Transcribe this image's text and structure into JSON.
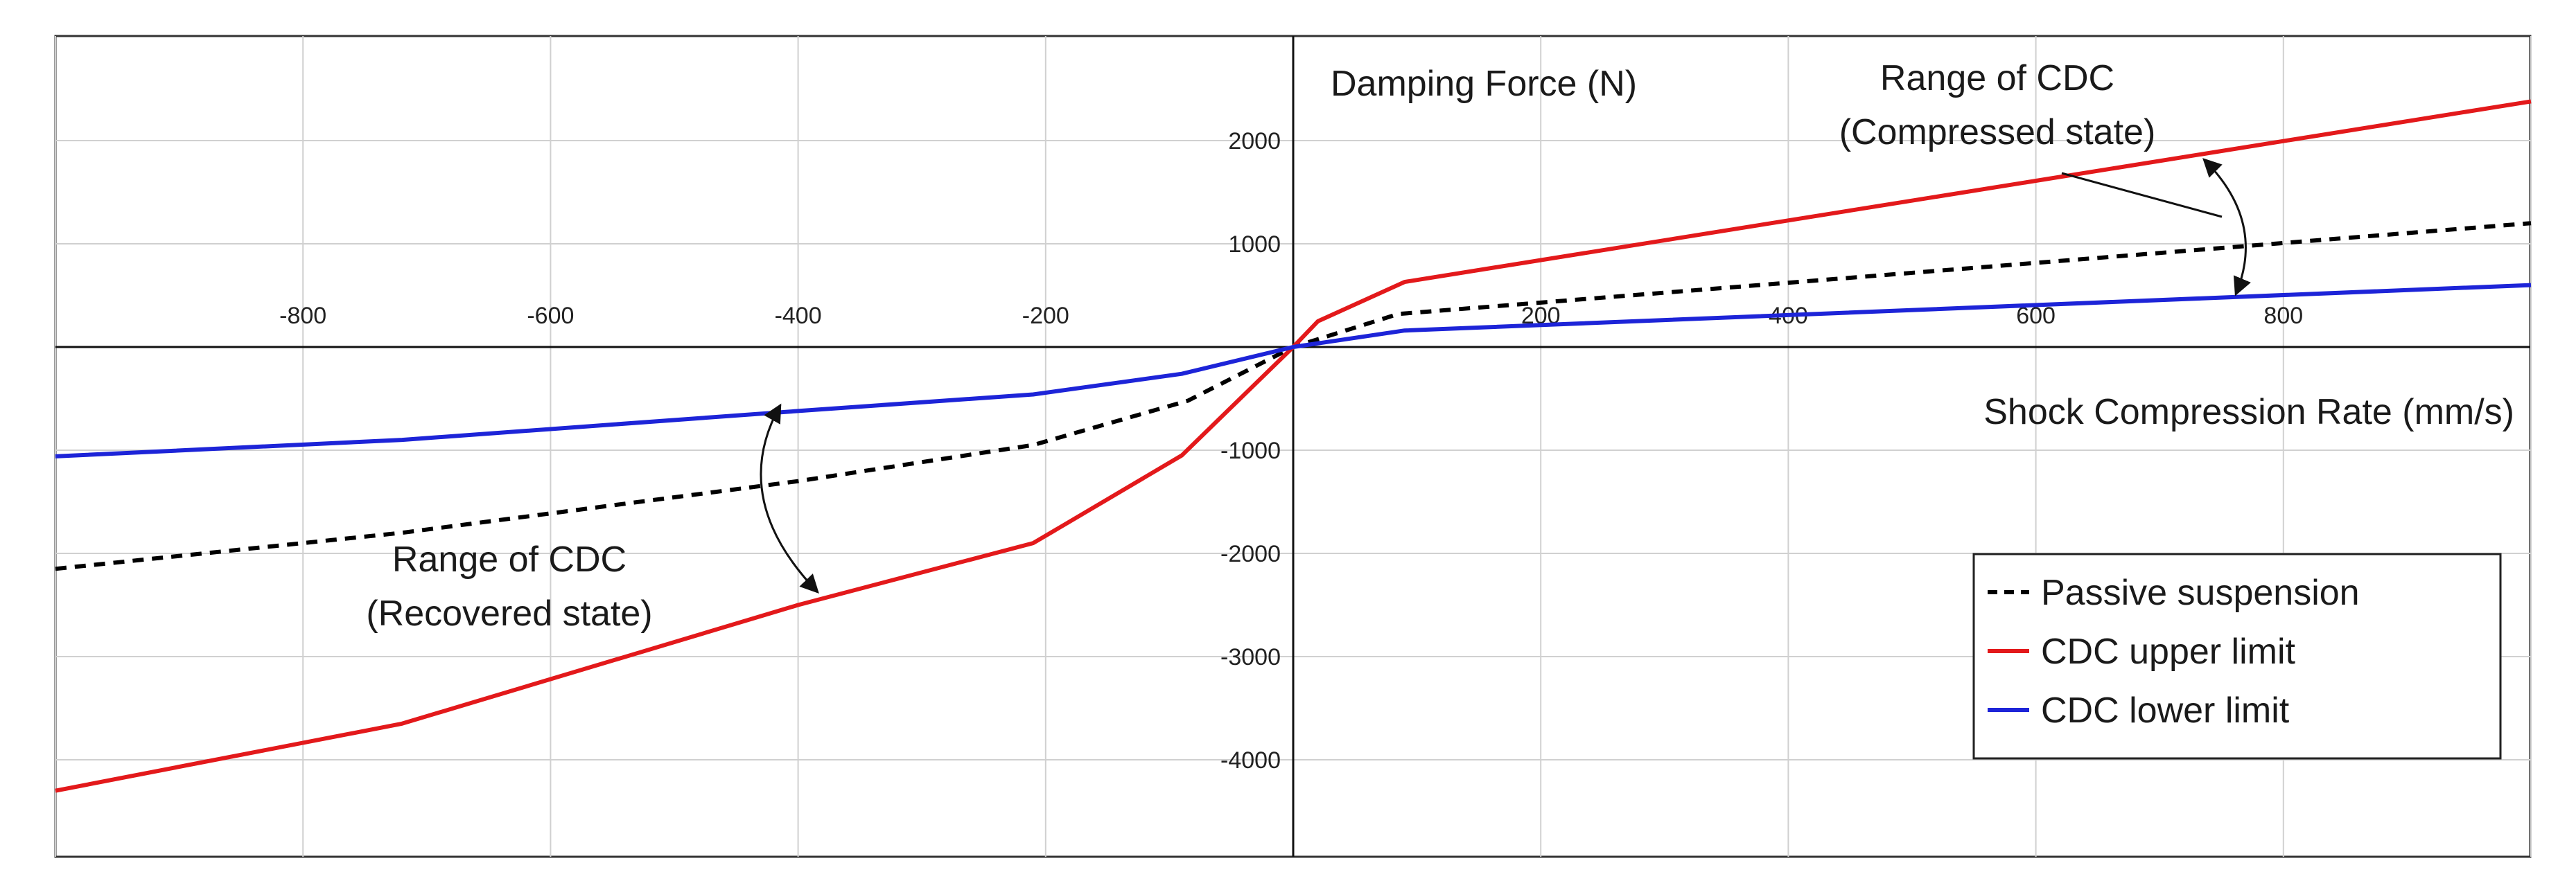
{
  "chart_data": {
    "type": "line",
    "xlabel": "Shock Compression Rate (mm/s)",
    "ylabel": "Damping Force (N)",
    "xlim": [
      -1000,
      1000
    ],
    "ylim": [
      -5000,
      3000
    ],
    "xticks": [
      -800,
      -600,
      -400,
      -200,
      200,
      400,
      600,
      800
    ],
    "yticks": [
      2000,
      1000,
      -1000,
      -2000,
      -3000,
      -4000
    ],
    "grid": true,
    "legend_position": "bottom-right",
    "series": [
      {
        "name": "Passive suspension",
        "color": "#000000",
        "style": "dashed",
        "x": [
          -1000,
          -720,
          -400,
          -210,
          -85,
          0,
          85,
          200,
          1000
        ],
        "y": [
          -2150,
          -1800,
          -1300,
          -950,
          -520,
          0,
          320,
          430,
          1200
        ]
      },
      {
        "name": "CDC upper limit",
        "color": "#e3191b",
        "style": "solid",
        "x": [
          -1000,
          -720,
          -400,
          -210,
          -90,
          0,
          20,
          90,
          1000
        ],
        "y": [
          -4300,
          -3650,
          -2500,
          -1900,
          -1050,
          0,
          250,
          630,
          2380
        ]
      },
      {
        "name": "CDC lower limit",
        "color": "#1d24d8",
        "style": "solid",
        "x": [
          -1000,
          -720,
          -400,
          -210,
          -90,
          0,
          90,
          1000
        ],
        "y": [
          -1060,
          -900,
          -620,
          -460,
          -260,
          0,
          160,
          600
        ]
      }
    ],
    "annotations": [
      {
        "text_lines": [
          "Range of CDC",
          "(Compressed state)"
        ]
      },
      {
        "text_lines": [
          "Range of CDC",
          "(Recovered state)"
        ]
      }
    ]
  }
}
